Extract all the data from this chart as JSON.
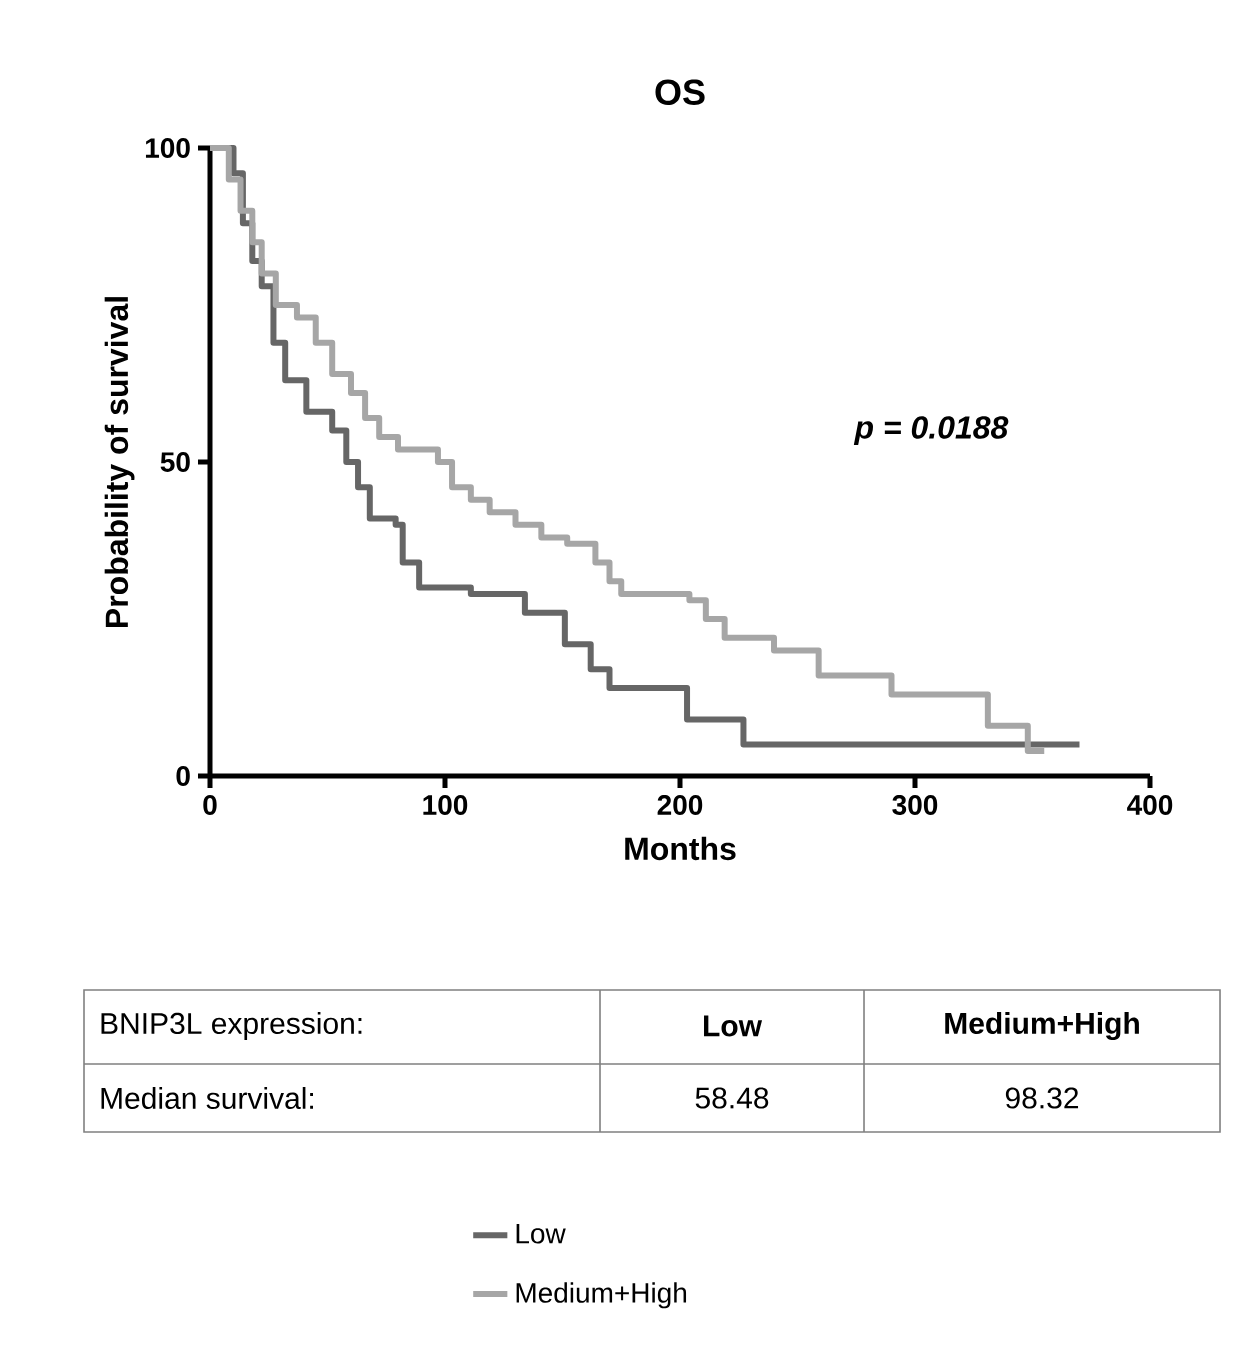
{
  "chart_data": {
    "type": "step",
    "title": "OS",
    "xlabel": "Months",
    "ylabel": "Probability of survival",
    "xlim": [
      0,
      400
    ],
    "ylim": [
      0,
      100
    ],
    "xticks": [
      0,
      100,
      200,
      300,
      400
    ],
    "yticks": [
      0,
      50,
      100
    ],
    "grid": false,
    "legend": "bottom",
    "marker": "none",
    "line_style": "solid",
    "series": [
      {
        "name": "Low",
        "color": "#666666",
        "x": [
          0,
          10,
          14,
          18,
          22,
          27,
          32,
          41,
          52,
          58,
          63,
          68,
          79,
          82,
          89,
          111,
          134,
          151,
          162,
          170,
          203,
          227,
          370
        ],
        "values": [
          100,
          96,
          88,
          82,
          78,
          69,
          63,
          58,
          55,
          50,
          46,
          41,
          40,
          34,
          30,
          29,
          26,
          21,
          17,
          14,
          9,
          5,
          5
        ]
      },
      {
        "name": "Medium+High",
        "color": "#a6a6a6",
        "x": [
          0,
          8,
          13,
          18,
          22,
          28,
          37,
          45,
          52,
          60,
          66,
          72,
          80,
          97,
          103,
          111,
          119,
          130,
          141,
          152,
          164,
          170,
          175,
          204,
          211,
          219,
          240,
          259,
          290,
          331,
          348,
          355
        ],
        "values": [
          100,
          95,
          90,
          85,
          80,
          75,
          73,
          69,
          64,
          61,
          57,
          54,
          52,
          50,
          46,
          44,
          42,
          40,
          38,
          37,
          34,
          31,
          29,
          28,
          25,
          22,
          20,
          16,
          13,
          8,
          4,
          4
        ]
      }
    ],
    "annotations": [
      "p = 0.0188",
      "BNIP3L expression:",
      "Low",
      "Medium+High",
      "Median survival:",
      "58.48",
      "98.32"
    ]
  }
}
